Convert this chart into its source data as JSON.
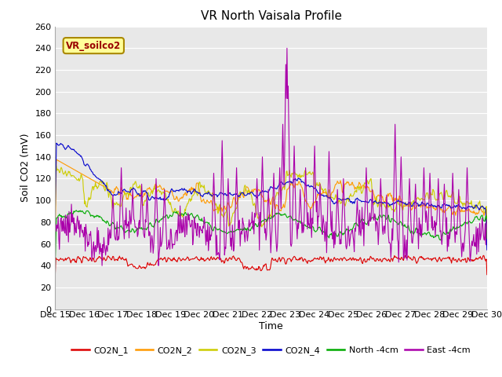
{
  "title": "VR North Vaisala Profile",
  "ylabel": "Soil CO2 (mV)",
  "xlabel": "Time",
  "annotation": "VR_soilco2",
  "ylim": [
    0,
    260
  ],
  "yticks": [
    0,
    20,
    40,
    60,
    80,
    100,
    120,
    140,
    160,
    180,
    200,
    220,
    240,
    260
  ],
  "xtick_labels": [
    "Dec 15",
    "Dec 16",
    "Dec 17",
    "Dec 18",
    "Dec 19",
    "Dec 20",
    "Dec 21",
    "Dec 22",
    "Dec 23",
    "Dec 24",
    "Dec 25",
    "Dec 26",
    "Dec 27",
    "Dec 28",
    "Dec 29",
    "Dec 30"
  ],
  "colors": {
    "CO2N_1": "#dd0000",
    "CO2N_2": "#ff9900",
    "CO2N_3": "#cccc00",
    "CO2N_4": "#0000cc",
    "North_4cm": "#00aa00",
    "East_4cm": "#aa00aa"
  },
  "bg_color": "#e8e8e8",
  "fig_bg": "#ffffff",
  "grid_color": "#ffffff",
  "title_fontsize": 11,
  "label_fontsize": 9,
  "tick_fontsize": 8
}
